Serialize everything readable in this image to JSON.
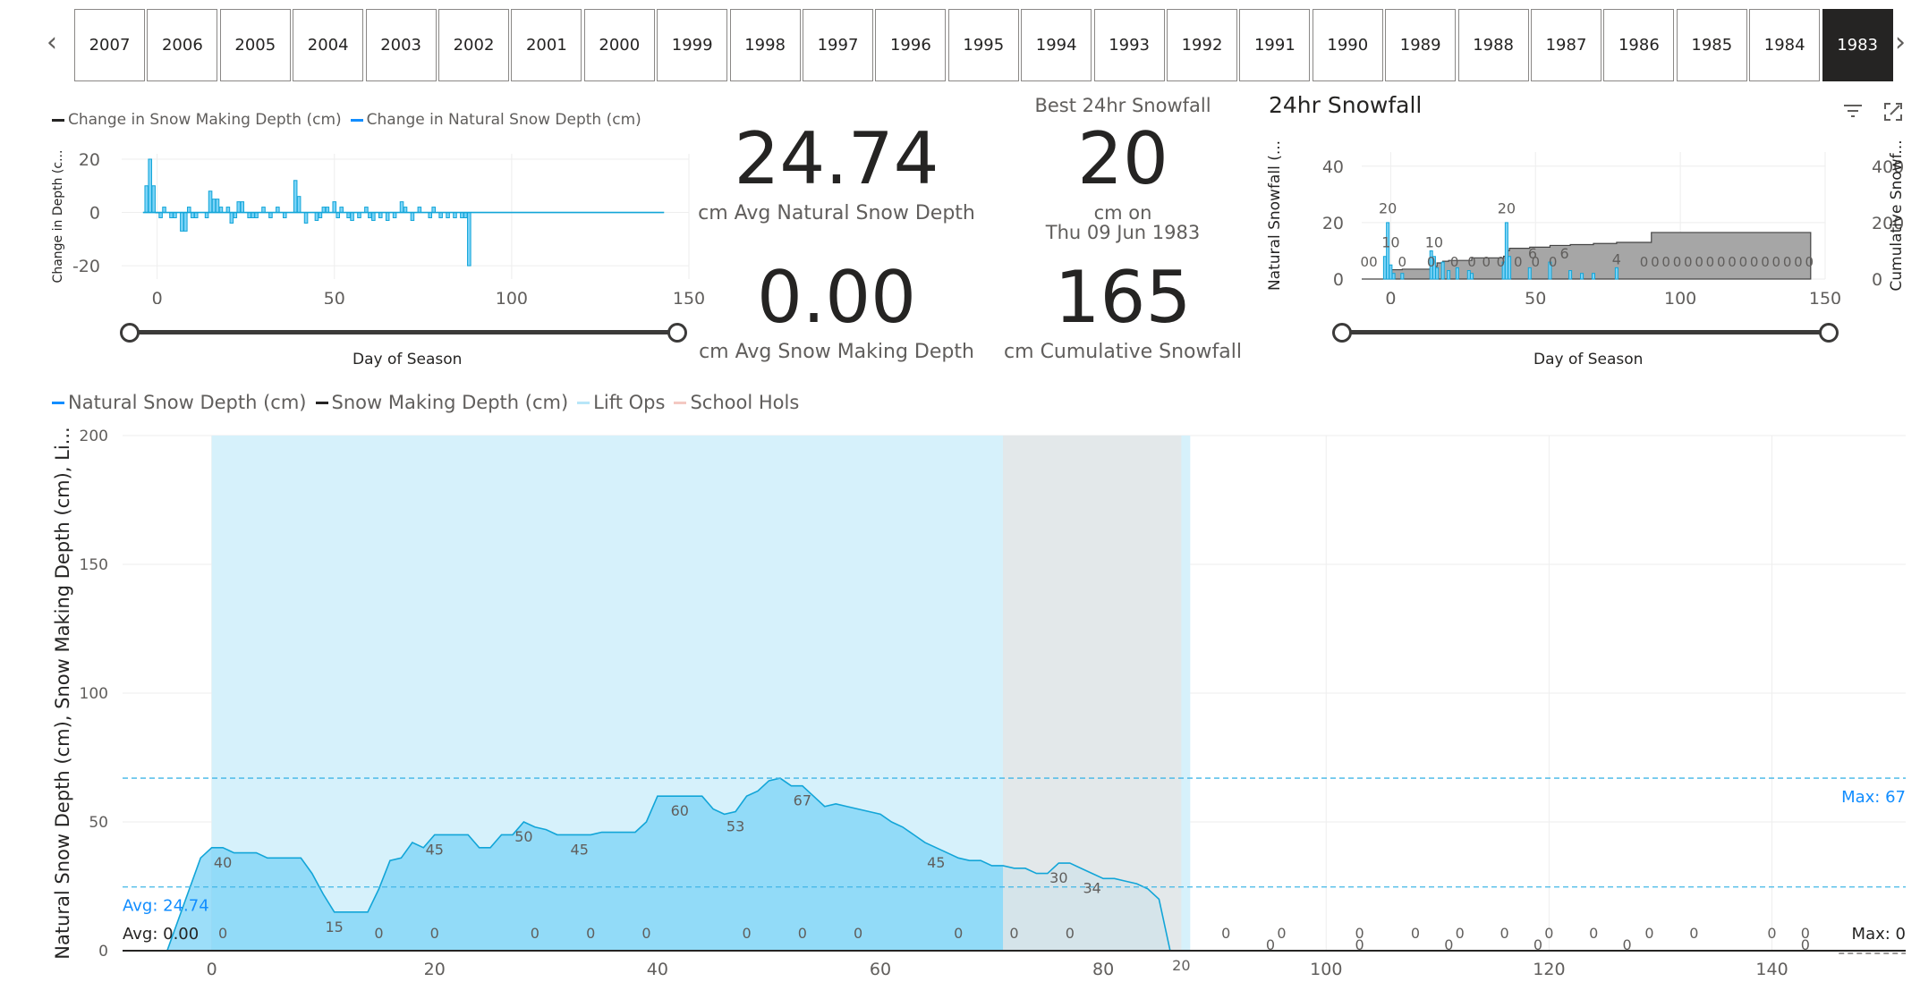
{
  "year_slicer": {
    "years": [
      "2007",
      "2006",
      "2005",
      "2004",
      "2003",
      "2002",
      "2001",
      "2000",
      "1999",
      "1998",
      "1997",
      "1996",
      "1995",
      "1994",
      "1993",
      "1992",
      "1991",
      "1990",
      "1989",
      "1988",
      "1987",
      "1986",
      "1985",
      "1984",
      "1983"
    ],
    "selected": "1983",
    "prev_icon": "chevron-left-icon",
    "next_icon": "chevron-right-icon"
  },
  "change_chart": {
    "legend": [
      "Change in Snow Making Depth (cm)",
      "Change in Natural Snow Depth (cm)"
    ],
    "ylabel": "Change in Depth (c...",
    "xlabel": "Day of Season",
    "y_ticks": [
      "20",
      "0",
      "-20"
    ],
    "x_ticks": [
      "0",
      "50",
      "100",
      "150"
    ]
  },
  "kpis": {
    "avg_natural": {
      "value": "24.74",
      "label": "cm Avg Natural Snow Depth"
    },
    "avg_snowmaking": {
      "value": "0.00",
      "label": "cm Avg Snow Making Depth"
    },
    "best_24hr": {
      "title": "Best 24hr Snowfall",
      "value": "20",
      "label_line1": "cm on",
      "label_line2": "Thu 09 Jun 1983"
    },
    "cumulative": {
      "value": "165",
      "label": "cm Cumulative Snowfall"
    }
  },
  "snowfall_chart": {
    "title": "24hr Snowfall",
    "ylabel_left": "Natural Snowfall (...",
    "ylabel_right": "Cumulative Snowf...",
    "xlabel": "Day of Season",
    "y_ticks_left": [
      "40",
      "20",
      "0"
    ],
    "y_ticks_right": [
      "400",
      "200",
      "0"
    ],
    "x_ticks": [
      "0",
      "50",
      "100",
      "150"
    ],
    "filter_icon": "filter-icon",
    "focus_icon": "expand-icon",
    "peak_labels": [
      "20",
      "10",
      "10",
      "20",
      "6",
      "6",
      "4"
    ],
    "zero_run": "0 0 0 0 0 0 0 0 0 0 0 0 0 0 0 0"
  },
  "main_chart": {
    "legend": [
      "Natural Snow Depth (cm)",
      "Snow Making Depth (cm)",
      "Lift Ops",
      "School Hols"
    ],
    "ylabel": "Natural Snow Depth (cm), Snow Making Depth (cm), Li...",
    "y_ticks": [
      "200",
      "150",
      "100",
      "50",
      "0"
    ],
    "x_ticks": [
      "0",
      "20",
      "40",
      "60",
      "80",
      "100",
      "120",
      "140"
    ],
    "avg_label": "Avg: 24.74",
    "avg0_label": "Avg: 0.00",
    "max_label": "Max: 67",
    "max0_label": "Max: 0"
  },
  "chart_data": [
    {
      "type": "area",
      "title": "",
      "xlabel": "",
      "ylabel": "Natural Snow Depth (cm), Snow Making Depth (cm), Li...",
      "xlim": [
        -8,
        152
      ],
      "ylim": [
        0,
        200
      ],
      "series": [
        {
          "name": "Natural Snow Depth (cm)",
          "x": [
            -4,
            -1,
            0,
            1,
            2,
            3,
            4,
            5,
            6,
            7,
            8,
            9,
            10,
            11,
            12,
            13,
            14,
            15,
            16,
            17,
            18,
            19,
            20,
            21,
            22,
            23,
            24,
            25,
            26,
            27,
            28,
            29,
            30,
            31,
            32,
            33,
            34,
            35,
            36,
            37,
            38,
            39,
            40,
            41,
            42,
            43,
            44,
            45,
            46,
            47,
            48,
            49,
            50,
            51,
            52,
            53,
            54,
            55,
            56,
            57,
            58,
            59,
            60,
            61,
            62,
            63,
            64,
            65,
            66,
            67,
            68,
            69,
            70,
            71,
            72,
            73,
            74,
            75,
            76,
            77,
            78,
            79,
            80,
            81,
            82,
            83,
            84,
            85,
            86,
            87,
            88
          ],
          "values": [
            0,
            36,
            40,
            40,
            38,
            38,
            38,
            36,
            36,
            36,
            36,
            30,
            22,
            15,
            15,
            15,
            15,
            24,
            35,
            36,
            42,
            40,
            45,
            45,
            45,
            45,
            40,
            40,
            45,
            45,
            50,
            48,
            47,
            45,
            45,
            45,
            45,
            46,
            46,
            46,
            46,
            50,
            60,
            60,
            60,
            60,
            60,
            55,
            53,
            54,
            60,
            62,
            66,
            67,
            64,
            64,
            60,
            56,
            57,
            56,
            55,
            54,
            53,
            50,
            48,
            45,
            42,
            40,
            38,
            36,
            35,
            35,
            33,
            33,
            32,
            32,
            30,
            30,
            34,
            34,
            32,
            30,
            28,
            28,
            27,
            26,
            24,
            20,
            0,
            0,
            0
          ],
          "point_labels": [
            [
              1,
              "40"
            ],
            [
              11,
              "15"
            ],
            [
              20,
              "45"
            ],
            [
              28,
              "50"
            ],
            [
              33,
              "45"
            ],
            [
              42,
              "60"
            ],
            [
              47,
              "53"
            ],
            [
              53,
              "67"
            ],
            [
              65,
              "45"
            ],
            [
              76,
              "30"
            ],
            [
              79,
              "34"
            ],
            [
              87,
              "20"
            ]
          ]
        },
        {
          "name": "Snow Making Depth (cm)",
          "x": [
            -8,
            152
          ],
          "values": [
            0,
            0
          ]
        }
      ],
      "zero_labels_x": [
        1,
        15,
        20,
        29,
        34,
        39,
        48,
        53,
        58,
        67,
        72,
        77,
        91,
        96,
        103,
        108,
        112,
        116,
        120,
        124,
        129,
        133,
        140,
        143
      ],
      "zero_labels_low_x": [
        95,
        103,
        111,
        119,
        127,
        143
      ],
      "lift_ops_range": [
        0,
        87
      ],
      "school_hols_range": [
        71,
        87
      ],
      "avg_natural": 24.74,
      "max_natural": 67,
      "avg_snowmaking": 0,
      "max_snowmaking": 0,
      "colors": {
        "natural": "#118DFF",
        "area": "#7BD3F7",
        "lift_ops": "#D6F1FB",
        "school_hols": "#E6E6E6",
        "snowmaking": "#252423"
      }
    },
    {
      "type": "bar",
      "title": "",
      "xlabel": "Day of Season",
      "ylabel": "Change in Depth (c...",
      "xlim": [
        -10,
        150
      ],
      "ylim": [
        -25,
        22
      ],
      "x": [
        -3,
        -2,
        -1,
        0,
        1,
        2,
        4,
        5,
        7,
        8,
        9,
        10,
        11,
        14,
        15,
        16,
        17,
        18,
        20,
        21,
        22,
        23,
        24,
        26,
        27,
        28,
        30,
        32,
        34,
        36,
        39,
        40,
        42,
        45,
        46,
        47,
        48,
        50,
        51,
        52,
        54,
        55,
        57,
        59,
        60,
        61,
        63,
        65,
        67,
        69,
        70,
        72,
        74,
        77,
        78,
        80,
        82,
        84,
        86,
        87,
        88
      ],
      "values": [
        10,
        20,
        10,
        0,
        -2,
        2,
        -2,
        -2,
        -7,
        -7,
        2,
        -2,
        -2,
        -2,
        8,
        5,
        5,
        2,
        2,
        -4,
        -2,
        4,
        4,
        -2,
        -2,
        -2,
        2,
        -2,
        2,
        -2,
        12,
        6,
        -4,
        -3,
        -2,
        2,
        2,
        4,
        -2,
        2,
        -2,
        -3,
        -2,
        2,
        -2,
        -3,
        -2,
        -3,
        -2,
        4,
        2,
        -3,
        2,
        -2,
        2,
        -2,
        -2,
        -2,
        -2,
        -2,
        -20
      ],
      "colors": {
        "natural": "#118DFF",
        "snowmaking": "#252423"
      }
    },
    {
      "type": "bar",
      "title": "24hr Snowfall",
      "xlabel": "Day of Season",
      "ylabel": "Natural Snowfall (...",
      "xlim": [
        -10,
        150
      ],
      "ylim": [
        0,
        45
      ],
      "x": [
        -2,
        -1,
        0,
        1,
        4,
        14,
        15,
        16,
        18,
        20,
        23,
        27,
        28,
        39,
        40,
        41,
        48,
        55,
        62,
        66,
        70,
        78
      ],
      "values": [
        8,
        20,
        5,
        2,
        2,
        10,
        8,
        4,
        6,
        3,
        4,
        3,
        2,
        6,
        20,
        8,
        4,
        6,
        3,
        2,
        2,
        4
      ],
      "cumulative_x": [
        -10,
        -2,
        -1,
        0,
        4,
        14,
        16,
        18,
        20,
        28,
        39,
        40,
        41,
        48,
        55,
        62,
        70,
        78,
        90,
        145
      ],
      "cumulative_values": [
        0,
        8,
        28,
        33,
        35,
        45,
        57,
        63,
        66,
        75,
        81,
        101,
        109,
        113,
        119,
        122,
        126,
        130,
        165,
        165
      ],
      "cumulative_ylim": [
        0,
        450
      ],
      "colors": {
        "bar": "#118DFF",
        "cumulative": "#8a8a8a"
      }
    }
  ]
}
